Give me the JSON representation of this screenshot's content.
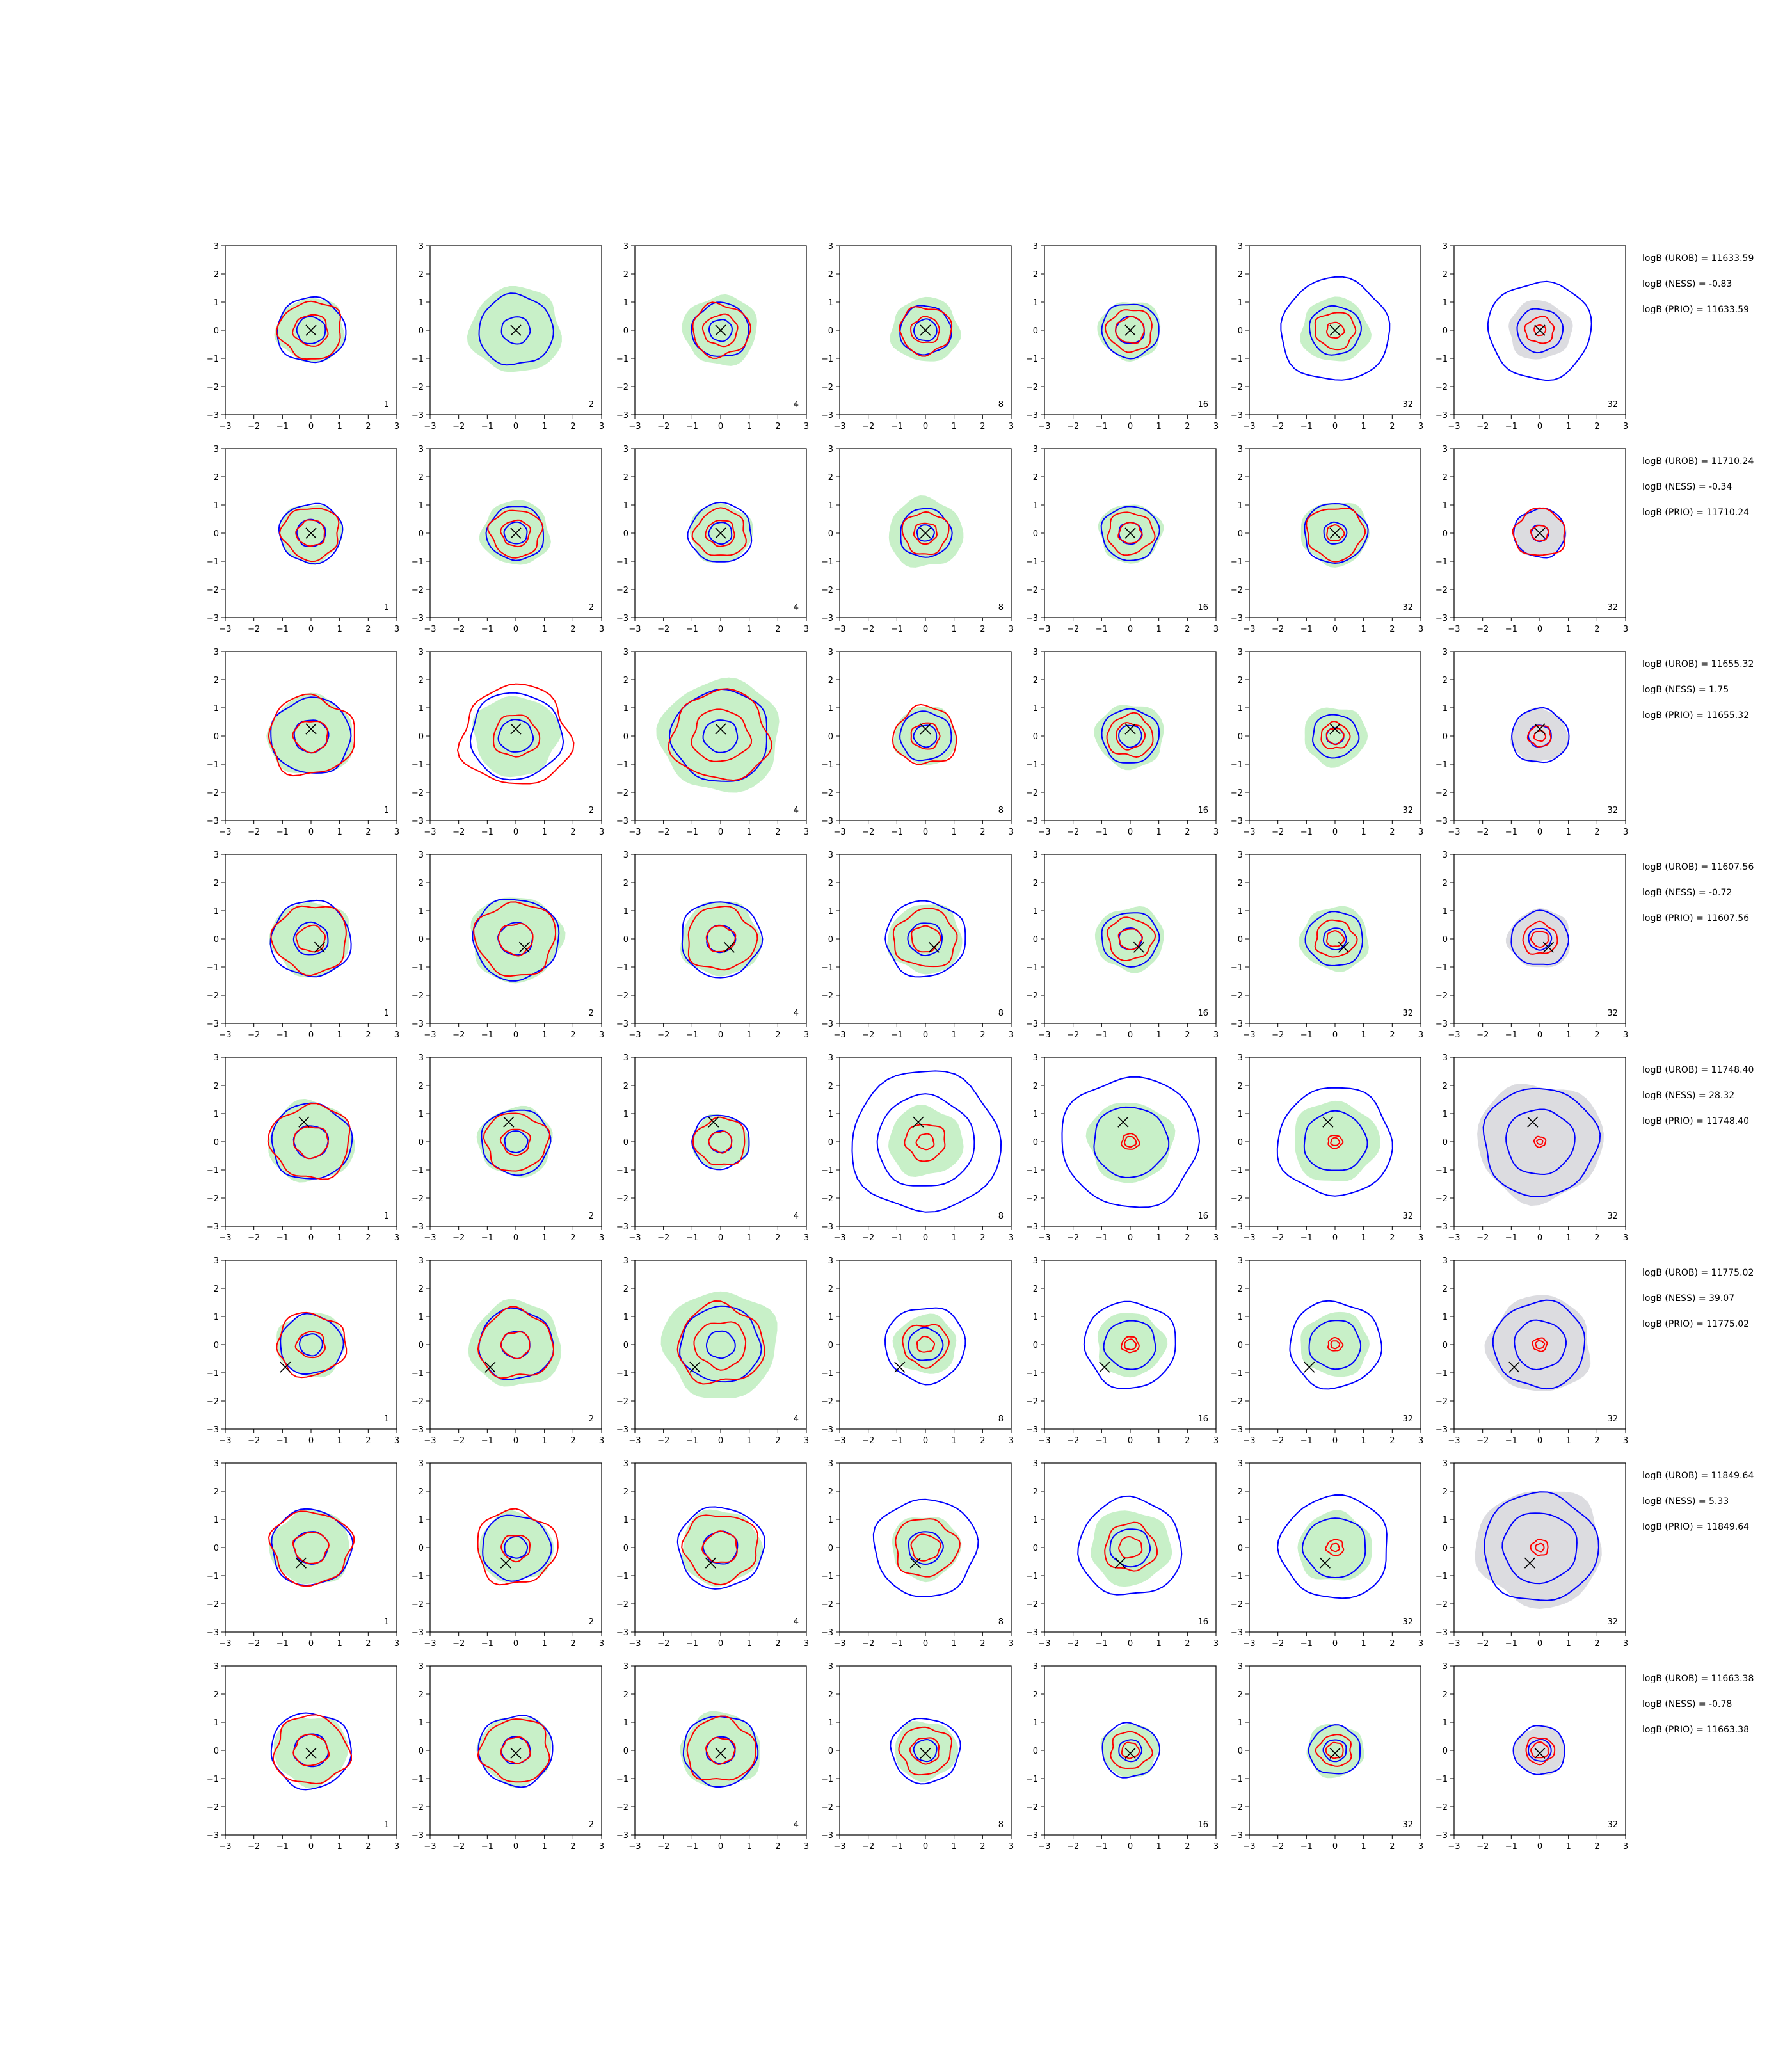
{
  "chart_data": {
    "type": "contour-grid",
    "xlim": [
      -3,
      3
    ],
    "ylim": [
      -3,
      3
    ],
    "xticks": [
      "−3",
      "−2",
      "−1",
      "0",
      "1",
      "2",
      "3"
    ],
    "yticks": [
      "3",
      "2",
      "1",
      "0",
      "−1",
      "−2",
      "−3"
    ],
    "grid": false,
    "colors": {
      "blue": "#0000ff",
      "red": "#ff0000",
      "fill_green": "#c8f0c8",
      "fill_gray": "#dcdce0",
      "marker": "#000000"
    },
    "column_labels": [
      "1",
      "2",
      "4",
      "8",
      "16",
      "32",
      "32"
    ],
    "rows": [
      {
        "stats": [
          "logB (UROB) = 11633.59",
          "logB (NESS) = -0.83",
          "logB (PRIO) = 11633.59"
        ],
        "marker": [
          0,
          0
        ],
        "marker_cols": [
          0,
          1,
          2,
          3,
          4,
          5,
          6
        ],
        "blue": [
          [
            1.2,
            0.5
          ],
          [
            1.3,
            0.5
          ],
          [
            1.0,
            0.4
          ],
          [
            0.9,
            0.4
          ],
          [
            1.0,
            0.5
          ],
          [
            1.9,
            0.9
          ],
          [
            1.8,
            0.8
          ]
        ],
        "red": [
          [
            1.1,
            0.6
          ],
          [
            0,
            0
          ],
          [
            1.0,
            0.6
          ],
          [
            0.9,
            0.5
          ],
          [
            0.8,
            0.5
          ],
          [
            0.7,
            0.3
          ],
          [
            0.5,
            0.2
          ]
        ],
        "fill": [
          [
            1.2,
            0.7
          ],
          [
            1.6,
            0.8
          ],
          [
            1.3,
            0.7
          ],
          [
            1.2,
            0.6
          ],
          [
            1.1,
            0.6
          ],
          [
            1.2,
            0.6
          ],
          [
            1.1,
            0.6
          ]
        ]
      },
      {
        "stats": [
          "logB (UROB) = 11710.24",
          "logB (NESS) = -0.34",
          "logB (PRIO) = 11710.24"
        ],
        "marker": [
          0,
          0
        ],
        "marker_cols": [
          0,
          1,
          2,
          3,
          4,
          5,
          6
        ],
        "blue": [
          [
            1.1,
            0.5
          ],
          [
            1.0,
            0.4
          ],
          [
            1.1,
            0.4
          ],
          [
            0.9,
            0.3
          ],
          [
            1.0,
            0.4
          ],
          [
            1.1,
            0.4
          ],
          [
            0.9,
            0.3
          ]
        ],
        "red": [
          [
            1.0,
            0.5
          ],
          [
            0.9,
            0.5
          ],
          [
            0.9,
            0.5
          ],
          [
            0.8,
            0.4
          ],
          [
            0.8,
            0.4
          ],
          [
            1.0,
            0.3
          ],
          [
            0.9,
            0.3
          ]
        ],
        "fill": [
          [
            1.1,
            0.6
          ],
          [
            1.2,
            0.6
          ],
          [
            1.1,
            0.5
          ],
          [
            1.3,
            0.6
          ],
          [
            1.1,
            0.5
          ],
          [
            1.2,
            0.5
          ],
          [
            0.9,
            0.4
          ]
        ]
      },
      {
        "stats": [
          "logB (UROB) = 11655.32",
          "logB (NESS) = 1.75",
          "logB (PRIO) = 11655.32"
        ],
        "marker": [
          0,
          0.25
        ],
        "marker_cols": [
          0,
          1,
          2,
          3,
          4,
          5,
          6
        ],
        "blue": [
          [
            1.4,
            0.6
          ],
          [
            1.6,
            0.6
          ],
          [
            1.7,
            0.6
          ],
          [
            0.9,
            0.4
          ],
          [
            1.0,
            0.4
          ],
          [
            0.8,
            0.3
          ],
          [
            1.0,
            0.4
          ]
        ],
        "red": [
          [
            1.5,
            0.6
          ],
          [
            1.9,
            0.8
          ],
          [
            1.7,
            1.0
          ],
          [
            1.1,
            0.5
          ],
          [
            0.8,
            0.5
          ],
          [
            0.5,
            0.3
          ],
          [
            0.4,
            0.2
          ]
        ],
        "fill": [
          [
            1.5,
            0.7
          ],
          [
            1.5,
            0.8
          ],
          [
            2.1,
            0.9
          ],
          [
            1.1,
            0.6
          ],
          [
            1.2,
            0.6
          ],
          [
            1.1,
            0.6
          ],
          [
            1.0,
            0.5
          ]
        ]
      },
      {
        "stats": [
          "logB (UROB) = 11607.56",
          "logB (NESS) = -0.72",
          "logB (PRIO) = 11607.56"
        ],
        "marker": [
          0.3,
          -0.3
        ],
        "marker_cols": [
          0,
          1,
          2,
          3,
          4,
          5,
          6
        ],
        "blue": [
          [
            1.4,
            0.6
          ],
          [
            1.5,
            0.6
          ],
          [
            1.4,
            0.5
          ],
          [
            1.4,
            0.6
          ],
          [
            1.0,
            0.4
          ],
          [
            1.0,
            0.4
          ],
          [
            1.0,
            0.4
          ]
        ],
        "red": [
          [
            1.3,
            0.5
          ],
          [
            1.4,
            0.6
          ],
          [
            1.2,
            0.5
          ],
          [
            1.1,
            0.5
          ],
          [
            0.8,
            0.4
          ],
          [
            0.7,
            0.3
          ],
          [
            0.6,
            0.3
          ]
        ],
        "fill": [
          [
            1.4,
            0.7
          ],
          [
            1.6,
            0.8
          ],
          [
            1.4,
            0.7
          ],
          [
            1.3,
            0.6
          ],
          [
            1.2,
            0.6
          ],
          [
            1.2,
            0.6
          ],
          [
            1.1,
            0.5
          ]
        ]
      },
      {
        "stats": [
          "logB (UROB) = 11748.40",
          "logB (NESS) = 28.32",
          "logB (PRIO) = 11748.40"
        ],
        "marker": [
          -0.25,
          0.7
        ],
        "marker_cols": [
          0,
          1,
          2,
          3,
          4,
          5,
          6
        ],
        "blue": [
          [
            1.4,
            0.6
          ],
          [
            1.2,
            0.4
          ],
          [
            1.0,
            0.4
          ],
          [
            2.6,
            1.7
          ],
          [
            2.4,
            1.3
          ],
          [
            2.0,
            1.1
          ],
          [
            2.0,
            1.2
          ]
        ],
        "red": [
          [
            1.4,
            0.6
          ],
          [
            1.1,
            0.5
          ],
          [
            0.9,
            0.4
          ],
          [
            0.7,
            0.3
          ],
          [
            0.3,
            0.2
          ],
          [
            0.25,
            0.15
          ],
          [
            0.2,
            0.1
          ]
        ],
        "fill": [
          [
            1.5,
            0.7
          ],
          [
            1.3,
            0.6
          ],
          [
            1.0,
            0.5
          ],
          [
            1.3,
            0.6
          ],
          [
            1.5,
            0.6
          ],
          [
            1.5,
            0.6
          ],
          [
            2.2,
            1.3
          ]
        ]
      },
      {
        "stats": [
          "logB (UROB) = 11775.02",
          "logB (NESS) = 39.07",
          "logB (PRIO) = 11775.02"
        ],
        "marker": [
          -0.9,
          -0.8
        ],
        "marker_cols": [
          0,
          1,
          2,
          3,
          4,
          5,
          6
        ],
        "blue": [
          [
            1.1,
            0.4
          ],
          [
            1.3,
            0.5
          ],
          [
            1.4,
            0.5
          ],
          [
            1.4,
            0.6
          ],
          [
            1.6,
            0.9
          ],
          [
            1.6,
            0.9
          ],
          [
            1.6,
            0.9
          ]
        ],
        "red": [
          [
            1.2,
            0.5
          ],
          [
            1.3,
            0.5
          ],
          [
            1.5,
            0.9
          ],
          [
            0.8,
            0.3
          ],
          [
            0.3,
            0.2
          ],
          [
            0.25,
            0.15
          ],
          [
            0.25,
            0.15
          ]
        ],
        "fill": [
          [
            1.2,
            0.6
          ],
          [
            1.6,
            0.8
          ],
          [
            2.0,
            0.9
          ],
          [
            1.1,
            0.6
          ],
          [
            1.2,
            0.7
          ],
          [
            1.2,
            0.7
          ],
          [
            1.8,
            0.9
          ]
        ]
      },
      {
        "stats": [
          "logB (UROB) = 11849.64",
          "logB (NESS) = 5.33",
          "logB (PRIO) = 11849.64"
        ],
        "marker": [
          -0.35,
          -0.55
        ],
        "marker_cols": [
          0,
          1,
          2,
          3,
          4,
          5,
          6
        ],
        "blue": [
          [
            1.4,
            0.6
          ],
          [
            1.2,
            0.4
          ],
          [
            1.5,
            0.6
          ],
          [
            1.8,
            0.6
          ],
          [
            1.8,
            0.7
          ],
          [
            1.9,
            1.1
          ],
          [
            2.0,
            1.3
          ]
        ],
        "red": [
          [
            1.4,
            0.6
          ],
          [
            1.4,
            0.5
          ],
          [
            1.3,
            0.6
          ],
          [
            1.1,
            0.5
          ],
          [
            0.9,
            0.4
          ],
          [
            0.3,
            0.15
          ],
          [
            0.3,
            0.15
          ]
        ],
        "fill": [
          [
            1.4,
            0.7
          ],
          [
            1.3,
            0.6
          ],
          [
            1.4,
            0.7
          ],
          [
            1.2,
            0.6
          ],
          [
            1.4,
            0.7
          ],
          [
            1.3,
            0.7
          ],
          [
            2.2,
            1.2
          ]
        ]
      },
      {
        "stats": [
          "logB (UROB) = 11663.38",
          "logB (NESS) = -0.78",
          "logB (PRIO) = 11663.38"
        ],
        "marker": [
          0,
          -0.1
        ],
        "marker_cols": [
          0,
          1,
          2,
          3,
          4,
          5,
          6
        ],
        "blue": [
          [
            1.4,
            0.6
          ],
          [
            1.3,
            0.5
          ],
          [
            1.3,
            0.5
          ],
          [
            1.2,
            0.4
          ],
          [
            1.0,
            0.4
          ],
          [
            0.9,
            0.4
          ],
          [
            0.9,
            0.4
          ]
        ],
        "red": [
          [
            1.3,
            0.6
          ],
          [
            1.2,
            0.5
          ],
          [
            1.2,
            0.5
          ],
          [
            0.9,
            0.5
          ],
          [
            0.7,
            0.3
          ],
          [
            0.6,
            0.3
          ],
          [
            0.5,
            0.3
          ]
        ],
        "fill": [
          [
            1.3,
            0.7
          ],
          [
            1.3,
            0.6
          ],
          [
            1.4,
            0.7
          ],
          [
            1.1,
            0.6
          ],
          [
            1.0,
            0.5
          ],
          [
            1.0,
            0.5
          ],
          [
            0.9,
            0.5
          ]
        ]
      }
    ]
  }
}
